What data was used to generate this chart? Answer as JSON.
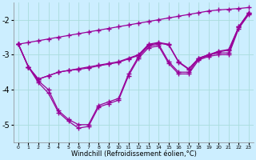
{
  "x": [
    0,
    1,
    2,
    3,
    4,
    5,
    6,
    7,
    8,
    9,
    10,
    11,
    12,
    13,
    14,
    15,
    16,
    17,
    18,
    19,
    20,
    21,
    22,
    23
  ],
  "line_straight": [
    -2.7,
    -2.65,
    -2.6,
    -2.55,
    -2.5,
    -2.45,
    -2.4,
    -2.35,
    -2.3,
    -2.25,
    -2.2,
    -2.15,
    -2.1,
    -2.05,
    -2.0,
    -1.95,
    -1.9,
    -1.85,
    -1.8,
    -1.75,
    -1.72,
    -1.7,
    -1.68,
    -1.65
  ],
  "line_curve1": [
    -2.7,
    -3.35,
    -3.7,
    -3.6,
    -3.5,
    -3.45,
    -3.4,
    -3.35,
    -3.3,
    -3.25,
    -3.2,
    -3.1,
    -3.0,
    -2.7,
    -2.65,
    -2.7,
    -3.2,
    -3.4,
    -3.1,
    -3.0,
    -2.9,
    -2.85,
    -2.2,
    -1.8
  ],
  "line_curve2": [
    -2.7,
    -3.35,
    -3.7,
    -3.6,
    -3.5,
    -3.45,
    -3.42,
    -3.38,
    -3.32,
    -3.27,
    -3.22,
    -3.12,
    -3.02,
    -2.72,
    -2.67,
    -2.72,
    -3.22,
    -3.42,
    -3.12,
    -3.02,
    -2.92,
    -2.87,
    -2.22,
    -1.82
  ],
  "line_deep": [
    -2.7,
    -3.35,
    -3.75,
    -4.0,
    -4.6,
    -4.85,
    -5.0,
    -5.0,
    -4.45,
    -4.35,
    -4.25,
    -3.55,
    -3.05,
    -2.75,
    -2.7,
    -3.2,
    -3.5,
    -3.5,
    -3.1,
    -3.0,
    -2.95,
    -2.95,
    -2.2,
    -1.8
  ],
  "line_deep2": [
    -2.7,
    -3.35,
    -3.8,
    -4.1,
    -4.65,
    -4.9,
    -5.1,
    -5.05,
    -4.5,
    -4.4,
    -4.3,
    -3.6,
    -3.1,
    -2.8,
    -2.75,
    -3.25,
    -3.55,
    -3.55,
    -3.15,
    -3.05,
    -3.0,
    -3.0,
    -2.25,
    -1.85
  ],
  "color": "#990099",
  "bg_color": "#cceeff",
  "grid_color": "#aadddd",
  "xlabel": "Windchill (Refroidissement éolien,°C)",
  "xlim": [
    -0.5,
    23.5
  ],
  "ylim": [
    -5.5,
    -1.5
  ],
  "yticks": [
    -5,
    -4,
    -3,
    -2
  ],
  "figsize": [
    3.2,
    2.0
  ],
  "dpi": 100
}
